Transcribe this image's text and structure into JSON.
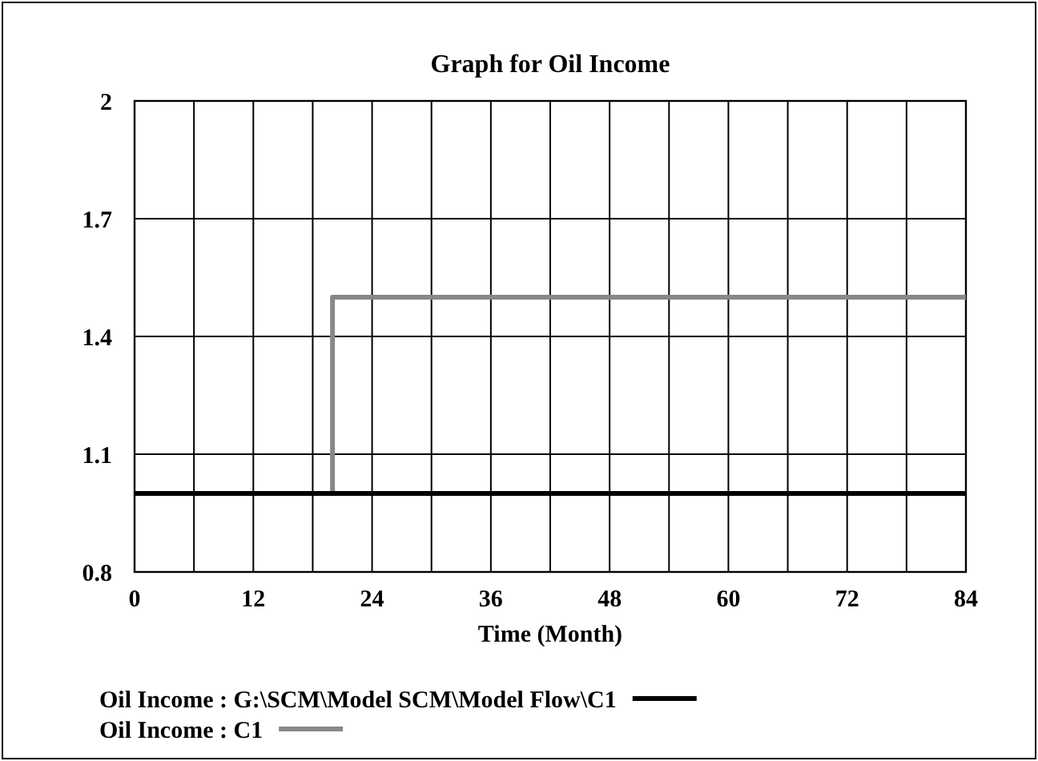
{
  "chart_data": {
    "type": "step",
    "title": "Graph for Oil Income",
    "xlabel": "Time (Month)",
    "xlim": [
      0,
      84
    ],
    "xticks": [
      0,
      {
        "value": 6,
        "label": null
      },
      12,
      {
        "value": 18,
        "label": null
      },
      24,
      {
        "value": 30,
        "label": null
      },
      36,
      {
        "value": 42,
        "label": null
      },
      48,
      {
        "value": 54,
        "label": null
      },
      60,
      {
        "value": 66,
        "label": null
      },
      72,
      {
        "value": 78,
        "label": null
      },
      84
    ],
    "ylim": [
      0.8,
      2
    ],
    "yticks": [
      0.8,
      1.1,
      1.4,
      1.7,
      2
    ],
    "grid": true,
    "legend": "bottom",
    "series": [
      {
        "name": "Oil Income : G:\\SCM\\Model SCM\\Model Flow\\C1",
        "color": "#000000",
        "x": [
          0,
          84
        ],
        "values": [
          1,
          1
        ]
      },
      {
        "name": "Oil Income : C1",
        "color": "#888888",
        "x": [
          20,
          20,
          84
        ],
        "values": [
          1,
          1.5,
          1.5
        ]
      }
    ]
  }
}
